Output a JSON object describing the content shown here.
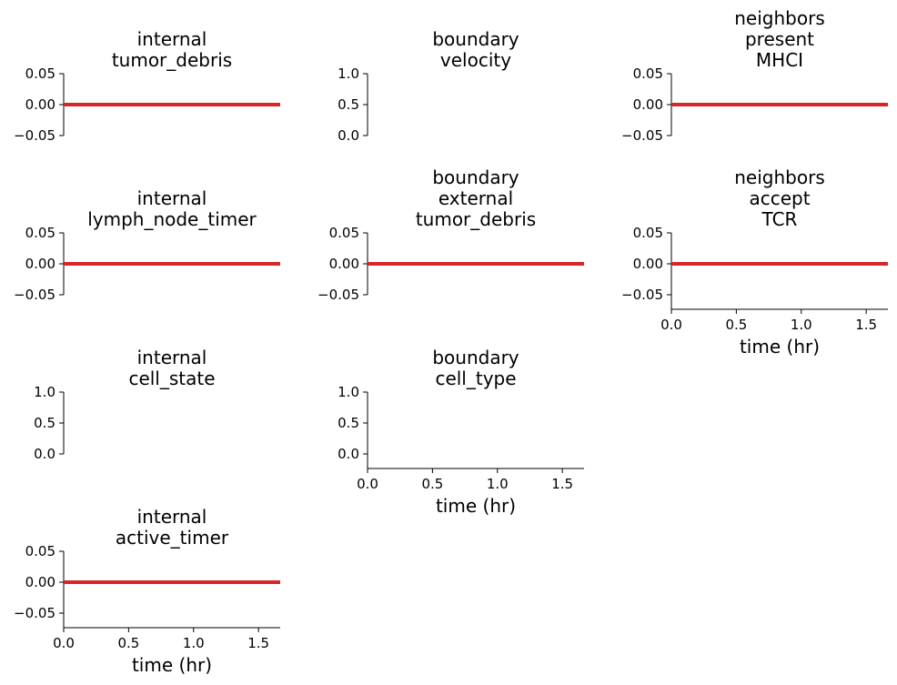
{
  "colors": {
    "line": "#d62728",
    "axis": "#000000"
  },
  "chart_data": [
    {
      "type": "line",
      "title_lines": [
        "internal",
        "tumor_debris"
      ],
      "x": [
        0.0,
        1.667
      ],
      "y": [
        0.0,
        0.0
      ],
      "xlim": [
        0,
        1.667
      ],
      "ylim": [
        -0.05,
        0.05
      ],
      "yticks": [
        "0.05",
        "0.00",
        "−0.05"
      ],
      "xticks": [],
      "xlabel": "",
      "grid": false
    },
    {
      "type": "line",
      "title_lines": [
        "boundary",
        "velocity"
      ],
      "x": [],
      "y": [],
      "xlim": [
        0,
        1.667
      ],
      "ylim": [
        0,
        1
      ],
      "yticks": [
        "1.0",
        "0.5",
        "0.0"
      ],
      "xticks": [],
      "xlabel": "",
      "grid": false
    },
    {
      "type": "line",
      "title_lines": [
        "neighbors",
        "present",
        "MHCI"
      ],
      "x": [
        0.0,
        1.667
      ],
      "y": [
        0.0,
        0.0
      ],
      "xlim": [
        0,
        1.667
      ],
      "ylim": [
        -0.05,
        0.05
      ],
      "yticks": [
        "0.05",
        "0.00",
        "−0.05"
      ],
      "xticks": [],
      "xlabel": "",
      "grid": false
    },
    {
      "type": "line",
      "title_lines": [
        "internal",
        "lymph_node_timer"
      ],
      "x": [
        0.0,
        1.667
      ],
      "y": [
        0.0,
        0.0
      ],
      "xlim": [
        0,
        1.667
      ],
      "ylim": [
        -0.05,
        0.05
      ],
      "yticks": [
        "0.05",
        "0.00",
        "−0.05"
      ],
      "xticks": [],
      "xlabel": "",
      "grid": false
    },
    {
      "type": "line",
      "title_lines": [
        "boundary",
        "external",
        "tumor_debris"
      ],
      "x": [
        0.0,
        1.667
      ],
      "y": [
        0.0,
        0.0
      ],
      "xlim": [
        0,
        1.667
      ],
      "ylim": [
        -0.05,
        0.05
      ],
      "yticks": [
        "0.05",
        "0.00",
        "−0.05"
      ],
      "xticks": [],
      "xlabel": "",
      "grid": false
    },
    {
      "type": "line",
      "title_lines": [
        "neighbors",
        "accept",
        "TCR"
      ],
      "x": [
        0.0,
        1.667
      ],
      "y": [
        0.0,
        0.0
      ],
      "xlim": [
        0,
        1.667
      ],
      "ylim": [
        -0.05,
        0.05
      ],
      "yticks": [
        "0.05",
        "0.00",
        "−0.05"
      ],
      "xticks": [
        "0.0",
        "0.5",
        "1.0",
        "1.5"
      ],
      "xlabel": "time (hr)",
      "grid": false
    },
    {
      "type": "line",
      "title_lines": [
        "internal",
        "cell_state"
      ],
      "x": [],
      "y": [],
      "xlim": [
        0,
        1.667
      ],
      "ylim": [
        0,
        1
      ],
      "yticks": [
        "1.0",
        "0.5",
        "0.0"
      ],
      "xticks": [],
      "xlabel": "",
      "grid": false
    },
    {
      "type": "line",
      "title_lines": [
        "boundary",
        "cell_type"
      ],
      "x": [],
      "y": [],
      "xlim": [
        0,
        1.667
      ],
      "ylim": [
        0,
        1
      ],
      "yticks": [
        "1.0",
        "0.5",
        "0.0"
      ],
      "xticks": [
        "0.0",
        "0.5",
        "1.0",
        "1.5"
      ],
      "xlabel": "time (hr)",
      "grid": false
    },
    {
      "type": "line",
      "title_lines": [
        "internal",
        "active_timer"
      ],
      "x": [
        0.0,
        1.667
      ],
      "y": [
        0.0,
        0.0
      ],
      "xlim": [
        0,
        1.667
      ],
      "ylim": [
        -0.05,
        0.05
      ],
      "yticks": [
        "0.05",
        "0.00",
        "−0.05"
      ],
      "xticks": [
        "0.0",
        "0.5",
        "1.0",
        "1.5"
      ],
      "xlabel": "time (hr)",
      "grid": false
    }
  ]
}
